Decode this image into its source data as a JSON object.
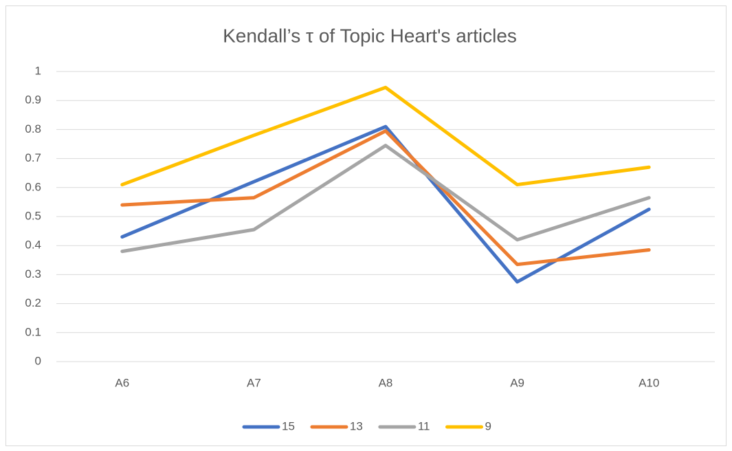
{
  "chart_data": {
    "type": "line",
    "title": "Kendall’s τ of Topic Heart's articles",
    "categories": [
      "A6",
      "A7",
      "A8",
      "A9",
      "A10"
    ],
    "series": [
      {
        "name": "15",
        "color": "#4472c4",
        "values": [
          0.43,
          0.62,
          0.81,
          0.275,
          0.525
        ]
      },
      {
        "name": "13",
        "color": "#ed7d31",
        "values": [
          0.54,
          0.565,
          0.795,
          0.335,
          0.385
        ]
      },
      {
        "name": "11",
        "color": "#a5a5a5",
        "values": [
          0.38,
          0.455,
          0.745,
          0.42,
          0.565
        ]
      },
      {
        "name": "9",
        "color": "#ffc000",
        "values": [
          0.61,
          0.78,
          0.945,
          0.61,
          0.67
        ]
      }
    ],
    "ylim": [
      0,
      1
    ],
    "yticks": [
      0,
      0.1,
      0.2,
      0.3,
      0.4,
      0.5,
      0.6,
      0.7,
      0.8,
      0.9,
      1
    ],
    "grid": true,
    "legend": "bottom"
  }
}
